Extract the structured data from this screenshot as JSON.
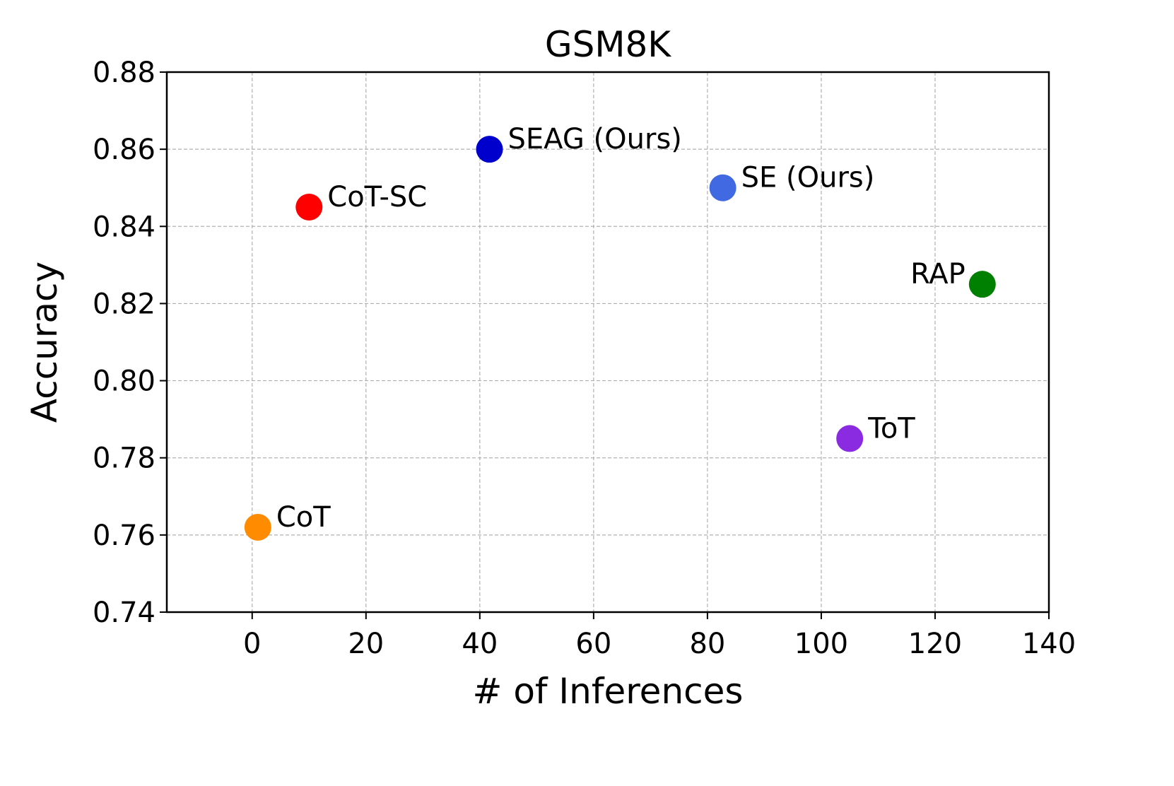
{
  "chart_data": {
    "type": "scatter",
    "title": "GSM8K",
    "xlabel": "# of Inferences",
    "ylabel": "Accuracy",
    "xlim": [
      -15,
      140
    ],
    "ylim": [
      0.74,
      0.88
    ],
    "xticks": [
      0,
      20,
      40,
      60,
      80,
      100,
      120,
      140
    ],
    "yticks": [
      0.74,
      0.76,
      0.78,
      0.8,
      0.82,
      0.84,
      0.86,
      0.88
    ],
    "ytick_labels": [
      "0.74",
      "0.76",
      "0.78",
      "0.80",
      "0.82",
      "0.84",
      "0.86",
      "0.88"
    ],
    "grid": true,
    "points": [
      {
        "label": "CoT",
        "x": 1,
        "y": 0.762,
        "color": "#ff8c00",
        "label_side": "right"
      },
      {
        "label": "CoT-SC",
        "x": 10,
        "y": 0.845,
        "color": "#ff0000",
        "label_side": "right"
      },
      {
        "label": "SEAG (Ours)",
        "x": 41.7,
        "y": 0.86,
        "color": "#0000cd",
        "label_side": "right"
      },
      {
        "label": "SE (Ours)",
        "x": 82.7,
        "y": 0.85,
        "color": "#4169e1",
        "label_side": "right"
      },
      {
        "label": "ToT",
        "x": 105,
        "y": 0.785,
        "color": "#8a2be2",
        "label_side": "right"
      },
      {
        "label": "RAP",
        "x": 128.3,
        "y": 0.825,
        "color": "#008000",
        "label_side": "left"
      }
    ]
  }
}
